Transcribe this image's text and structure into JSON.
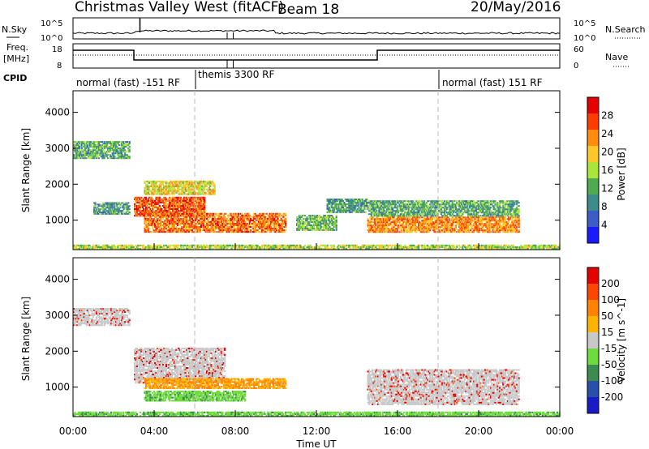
{
  "header": {
    "station": "Christmas Valley West (fitACF)",
    "beam": "Beam 18",
    "date": "20/May/2016"
  },
  "panels": {
    "nsky": {
      "left_label": "N.Sky",
      "right_label": "N.Search",
      "tick_top": "10^5",
      "tick_bottom": "10^0"
    },
    "freq": {
      "left_label_1": "Freq.",
      "left_label_2": "[MHz]",
      "right_label": "Nave",
      "left_ticks": [
        "18",
        "8"
      ],
      "right_ticks": [
        "60",
        "0"
      ]
    },
    "cpid": {
      "label": "CPID",
      "segments": [
        {
          "text": "normal (fast) -151 RF",
          "start_hr": 0,
          "end_hr": 6
        },
        {
          "text": "themis 3300 RF",
          "start_hr": 6,
          "end_hr": 18
        },
        {
          "text": "normal (fast) 151 RF",
          "start_hr": 18,
          "end_hr": 24
        }
      ]
    }
  },
  "chart_data": [
    {
      "type": "heatmap",
      "name": "Power",
      "ylabel": "Slant Range [km]",
      "ylim": [
        180,
        4600
      ],
      "yticks": [
        1000,
        2000,
        3000,
        4000
      ],
      "colorbar_label": "Power [dB]",
      "colorbar_ticks": [
        "4",
        "8",
        "12",
        "16",
        "20",
        "24",
        "28"
      ],
      "colorbar_range": [
        0,
        32
      ],
      "colors": [
        "#1a1aff",
        "#3c5cc8",
        "#3c8c8c",
        "#50aa50",
        "#a8e63c",
        "#ffc828",
        "#ff8c0a",
        "#ff3c00",
        "#e60000"
      ],
      "echo_regions": [
        {
          "t0": 0.0,
          "t1": 2.8,
          "r0": 2700,
          "r1": 3200,
          "level": 0.35
        },
        {
          "t0": 1.0,
          "t1": 2.8,
          "r0": 1150,
          "r1": 1500,
          "level": 0.3
        },
        {
          "t0": 3.0,
          "t1": 6.5,
          "r0": 1100,
          "r1": 1650,
          "level": 0.85
        },
        {
          "t0": 3.5,
          "t1": 7.0,
          "r0": 1700,
          "r1": 2100,
          "level": 0.6
        },
        {
          "t0": 3.5,
          "t1": 10.5,
          "r0": 650,
          "r1": 1200,
          "level": 0.8
        },
        {
          "t0": 11.0,
          "t1": 13.0,
          "r0": 700,
          "r1": 1150,
          "level": 0.4
        },
        {
          "t0": 12.5,
          "t1": 14.5,
          "r0": 1200,
          "r1": 1600,
          "level": 0.3
        },
        {
          "t0": 14.5,
          "t1": 22.0,
          "r0": 650,
          "r1": 1100,
          "level": 0.75
        },
        {
          "t0": 14.5,
          "t1": 22.0,
          "r0": 1100,
          "r1": 1550,
          "level": 0.35
        },
        {
          "t0": 0.0,
          "t1": 24.0,
          "r0": 180,
          "r1": 320,
          "level": 0.5
        }
      ]
    },
    {
      "type": "heatmap",
      "name": "Velocity",
      "ylabel": "Slant Range [km]",
      "xlabel": "Time UT",
      "ylim": [
        180,
        4600
      ],
      "yticks": [
        1000,
        2000,
        3000,
        4000
      ],
      "colorbar_label": "Velocity [m s^-1]",
      "colorbar_ticks": [
        "200",
        "100",
        "50",
        "15",
        "-15",
        "-50",
        "-100",
        "-200"
      ],
      "colors": [
        "#1a1ac8",
        "#2850aa",
        "#3c8c50",
        "#6edc3c",
        "#c8c8c8",
        "#ffb400",
        "#ff8200",
        "#ff4600",
        "#e60000"
      ],
      "echo_regions": [
        {
          "t0": 0.0,
          "t1": 2.8,
          "r0": 2700,
          "r1": 3200,
          "vel": 0
        },
        {
          "t0": 3.0,
          "t1": 7.5,
          "r0": 1100,
          "r1": 2100,
          "vel": 0
        },
        {
          "t0": 3.5,
          "t1": 10.5,
          "r0": 950,
          "r1": 1250,
          "vel": -40
        },
        {
          "t0": 3.5,
          "t1": 8.5,
          "r0": 600,
          "r1": 900,
          "vel": 30
        },
        {
          "t0": 14.5,
          "t1": 22.0,
          "r0": 500,
          "r1": 1500,
          "vel": 0
        },
        {
          "t0": 0.0,
          "t1": 24.0,
          "r0": 180,
          "r1": 320,
          "vel": 20
        }
      ]
    }
  ],
  "x_axis": {
    "ticks": [
      "00:00",
      "04:00",
      "08:00",
      "12:00",
      "16:00",
      "20:00",
      "00:00"
    ],
    "tick_hours": [
      0,
      4,
      8,
      12,
      16,
      20,
      24
    ],
    "dashed_markers_hr": [
      6,
      18
    ],
    "xlim": [
      0,
      24
    ]
  }
}
